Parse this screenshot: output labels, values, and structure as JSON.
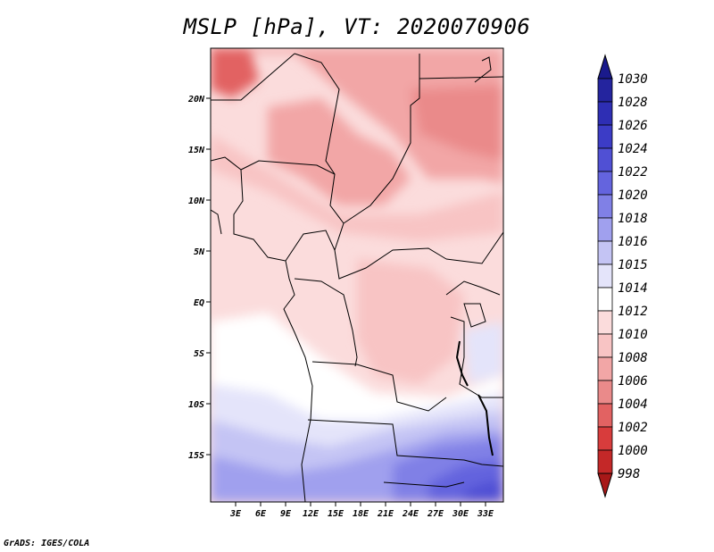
{
  "title": "MSLP [hPa], VT: 2020070906",
  "footer": "GrADS: IGES/COLA",
  "map": {
    "type": "filled-contour",
    "variable": "Mean sea level pressure",
    "units": "hPa",
    "valid_time": "2020070906",
    "lat_ticks": [
      "20N",
      "15N",
      "10N",
      "5N",
      "EQ",
      "5S",
      "10S",
      "15S"
    ],
    "lon_ticks": [
      "3E",
      "6E",
      "9E",
      "12E",
      "15E",
      "18E",
      "21E",
      "24E",
      "27E",
      "30E",
      "33E"
    ]
  },
  "colorbar": {
    "levels": [
      "1030",
      "1028",
      "1026",
      "1024",
      "1022",
      "1020",
      "1018",
      "1016",
      "1015",
      "1014",
      "1012",
      "1010",
      "1008",
      "1006",
      "1004",
      "1002",
      "1000",
      "998"
    ],
    "colors": [
      "#1a1a8c",
      "#24249e",
      "#2e2eb4",
      "#3c3cc6",
      "#5050d4",
      "#6464de",
      "#8080e6",
      "#a0a0ee",
      "#c4c4f4",
      "#e4e4fa",
      "#ffffff",
      "#fbdcdc",
      "#f8c4c4",
      "#f2a6a6",
      "#ea8a8a",
      "#e26262",
      "#d83c3c",
      "#c42828",
      "#a81818"
    ]
  }
}
